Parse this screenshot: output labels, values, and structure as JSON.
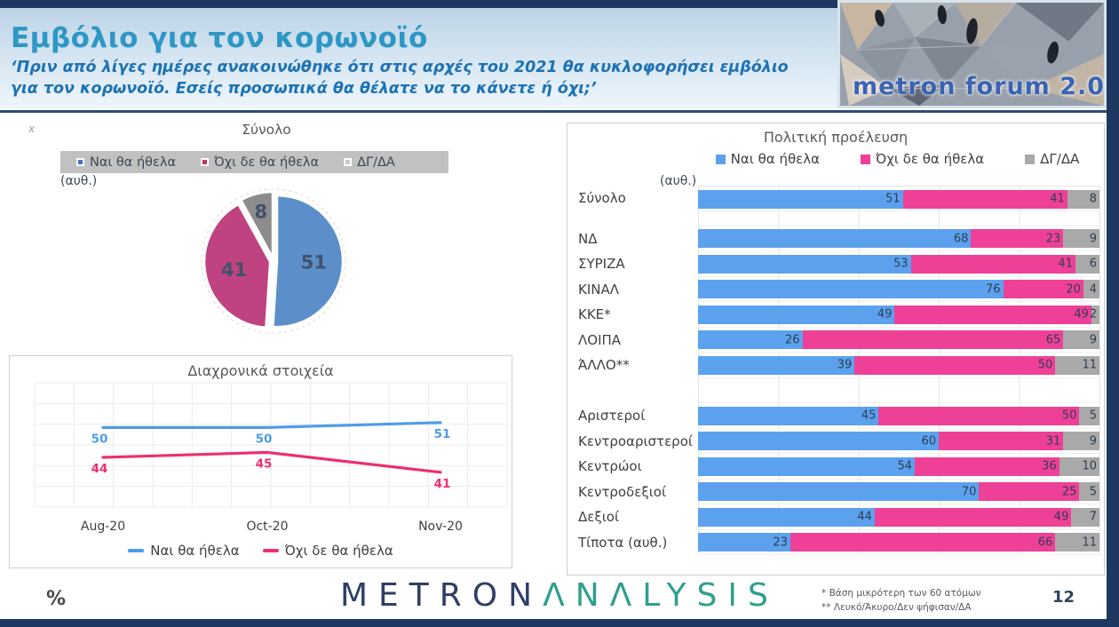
{
  "page": {
    "title": "Εμβόλιο για τον κορωνοϊό",
    "subtitle": "‘Πριν από λίγες ημέρες ανακοινώθηκε ότι στις αρχές του 2021 θα κυκλοφορήσει εμβόλιο για τον κορωνοϊό. Εσείς προσωπικά θα θέλατε να το κάνετε ή όχι;’",
    "corner_mark": "x",
    "logo": {
      "text": "metron forum 2.0"
    },
    "footer": {
      "unit_label": "%",
      "brand_part1": "METRON",
      "brand_part2": "ΛNΛLYSIS",
      "footnotes": [
        "*  Βάση μικρότερη των 60 ατόμων",
        "** Λευκό/Άκυρο/Δεν ψήφισαν/ΔΑ"
      ],
      "page_number": "12"
    }
  },
  "colors": {
    "edge_bar": "#1e3862",
    "header_gradient_top": "#bdd4e7",
    "header_gradient_bottom": "#eef6fc",
    "title": "#2d97c6",
    "subtitle": "#1d72b4",
    "section_title": "#595959",
    "text": "#404040",
    "legend_band": "#c1c1c1",
    "value_label": "#2f3e55",
    "brand_navy": "#2d3f66",
    "brand_teal": "#2f9e8f",
    "footnote": "#595959",
    "page_number": "#33425b"
  },
  "chart_data": [
    {
      "type": "pie",
      "title": "Σύνολο",
      "note": "(αυθ.)",
      "labels": [
        "Ναι θα ήθελα",
        "Όχι δε θα ήθελα",
        "ΔΓ/ΔΑ"
      ],
      "values": [
        51,
        41,
        8
      ],
      "colors": [
        "#5c8fc9",
        "#bf4380",
        "#8c8c8c"
      ],
      "legend_dot_colors": [
        "#4472c4",
        "#c2356b",
        "#c9c9c9"
      ],
      "legend_position": "top",
      "exploded": true
    },
    {
      "type": "line",
      "title": "Διαχρονικά στοιχεία",
      "x": [
        "Aug-20",
        "Oct-20",
        "Nov-20"
      ],
      "series": [
        {
          "name": "Ναι θα ήθελα",
          "values": [
            50,
            50,
            51
          ],
          "color": "#4f9ce8"
        },
        {
          "name": "Όχι δε θα ήθελα",
          "values": [
            44,
            45,
            41
          ],
          "color": "#ee2e71"
        }
      ],
      "ylim": [
        34,
        59
      ],
      "grid": true,
      "legend_position": "bottom"
    },
    {
      "type": "bar",
      "orientation": "horizontal-stacked",
      "title": "Πολιτική προέλευση",
      "note": "(αυθ.)",
      "categories": [
        "Σύνολο",
        "ΝΔ",
        "ΣΥΡΙΖΑ",
        "ΚΙΝΑΛ",
        "ΚΚΕ*",
        "ΛΟΙΠΑ",
        "ΆΛΛΟ**",
        "Αριστεροί",
        "Κεντροαριστεροί",
        "Κεντρώοι",
        "Κεντροδεξιοί",
        "Δεξιοί",
        "Τίποτα (αυθ.)"
      ],
      "series": [
        {
          "name": "Ναι θα ήθελα",
          "color": "#5ba1ee",
          "values": [
            51,
            68,
            53,
            76,
            49,
            26,
            39,
            45,
            60,
            54,
            70,
            44,
            23
          ]
        },
        {
          "name": "Όχι δε θα ήθελα",
          "color": "#ee4097",
          "values": [
            41,
            23,
            41,
            20,
            49,
            65,
            50,
            50,
            31,
            36,
            25,
            49,
            66
          ]
        },
        {
          "name": "ΔΓ/ΔΑ",
          "color": "#a9a9a9",
          "values": [
            8,
            9,
            6,
            4,
            2,
            9,
            11,
            5,
            9,
            10,
            5,
            7,
            11
          ]
        }
      ],
      "group_breaks_after": {
        "Σύνολο": "sp1",
        "ΆΛΛΟ**": "sp2"
      },
      "xlim": [
        0,
        100
      ],
      "grid": true,
      "legend_position": "top"
    }
  ]
}
